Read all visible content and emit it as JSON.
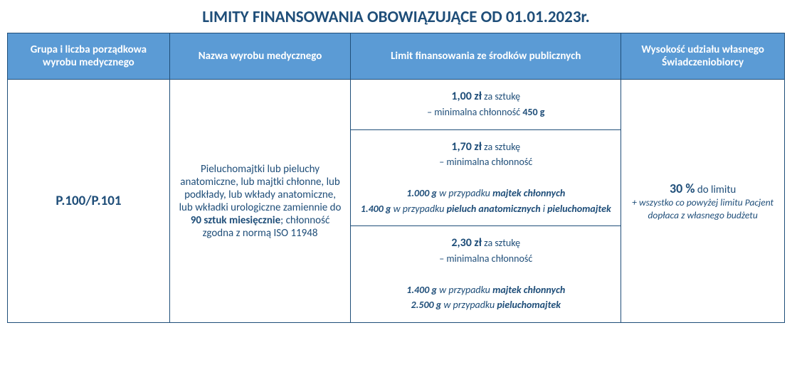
{
  "title": "LIMITY FINANSOWANIA OBOWIĄZUJĄCE OD 01.01.2023r.",
  "headers": {
    "h1": "Grupa i liczba porządkowa wyrobu medycznego",
    "h2": "Nazwa wyrobu medycznego",
    "h3": "Limit finansowania ze środków publicznych",
    "h4": "Wysokość udziału własnego Świadczeniobiorcy"
  },
  "group_code": "P.100/P.101",
  "product_name": {
    "p1": "Pieluchomajtki lub pieluchy anatomiczne, lub majtki chłonne, lub podkłady, lub wkłady anatomiczne, lub wkładki urologiczne zamiennie do ",
    "p1b": "90 sztuk miesięcznie",
    "p2": "; chłonność zgodna z normą ISO 11948"
  },
  "limit1": {
    "price": "1,00 zł",
    "per": " za sztukę",
    "line2a": "– minimalna chłonność ",
    "line2b": "450 g"
  },
  "limit2": {
    "price": "1,70 zł",
    "per": " za sztukę",
    "line2": "– minimalna chłonność",
    "l3a": "1.000 g",
    "l3b": " w przypadku ",
    "l3c": "majtek chłonnych",
    "l4a": "1.400 g",
    "l4b": " w przypadku ",
    "l4c": "pieluch anatomicznych",
    "l4d": " i ",
    "l4e": "pieluchomajtek"
  },
  "limit3": {
    "price": "2,30 zł",
    "per": " za sztukę",
    "line2": "– minimalna chłonność",
    "l3a": "1.400 g",
    "l3b": " w przypadku ",
    "l3c": "majtek chłonnych",
    "l4a": "2.500 g",
    "l4b": " w przypadku ",
    "l4c": "pieluchomajtek"
  },
  "share": {
    "pct": "30 %",
    "pct_after": " do limitu",
    "note": "+ wszystko co powyżej limitu Pacjent dopłaca z własnego budżetu"
  },
  "colors": {
    "header_bg": "#5b9bd5",
    "border": "#1f4e79",
    "text": "#1f4e79",
    "bg": "#ffffff"
  }
}
